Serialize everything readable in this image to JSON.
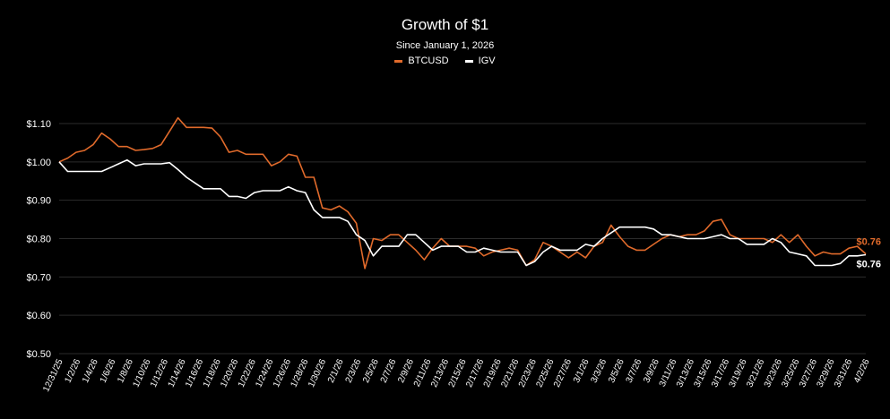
{
  "chart_data": {
    "type": "line",
    "title": "Growth of $1",
    "subtitle": "Since January 1, 2026",
    "ylim": [
      0.5,
      1.1
    ],
    "y_ticks": [
      0.5,
      0.6,
      0.7,
      0.8,
      0.9,
      1.0,
      1.1
    ],
    "y_tick_labels": [
      "$0.50",
      "$0.60",
      "$0.70",
      "$0.80",
      "$0.90",
      "$1.00",
      "$1.10"
    ],
    "x_tick_labels": [
      "12/31/25",
      "1/2/26",
      "1/4/26",
      "1/6/26",
      "1/8/26",
      "1/10/26",
      "1/12/26",
      "1/14/26",
      "1/16/26",
      "1/18/26",
      "1/20/26",
      "1/22/26",
      "1/24/26",
      "1/26/26",
      "1/28/26",
      "1/30/26",
      "2/1/26",
      "2/3/26",
      "2/5/26",
      "2/7/26",
      "2/9/26",
      "2/11/26",
      "2/13/26",
      "2/15/26",
      "2/17/26",
      "2/19/26",
      "2/21/26",
      "2/23/26",
      "2/25/26",
      "2/27/26",
      "3/1/26",
      "3/3/26",
      "3/5/26",
      "3/7/26",
      "3/9/26",
      "3/11/26",
      "3/13/26",
      "3/15/26",
      "3/17/26",
      "3/19/26",
      "3/21/26",
      "3/23/26",
      "3/25/26",
      "3/27/26",
      "3/29/26",
      "3/31/26",
      "4/2/26"
    ],
    "series": [
      {
        "name": "BTCUSD",
        "color": "#e06a2b",
        "end_label": "$0.76",
        "values": [
          1.0,
          1.01,
          1.025,
          1.03,
          1.045,
          1.075,
          1.06,
          1.04,
          1.04,
          1.03,
          1.032,
          1.035,
          1.045,
          1.08,
          1.115,
          1.09,
          1.09,
          1.09,
          1.088,
          1.065,
          1.025,
          1.03,
          1.02,
          1.02,
          1.02,
          0.99,
          1.0,
          1.02,
          1.015,
          0.96,
          0.96,
          0.88,
          0.875,
          0.885,
          0.87,
          0.84,
          0.722,
          0.8,
          0.795,
          0.81,
          0.81,
          0.79,
          0.77,
          0.745,
          0.775,
          0.8,
          0.78,
          0.78,
          0.78,
          0.775,
          0.755,
          0.765,
          0.77,
          0.775,
          0.77,
          0.73,
          0.745,
          0.79,
          0.78,
          0.765,
          0.75,
          0.765,
          0.75,
          0.78,
          0.79,
          0.835,
          0.805,
          0.78,
          0.77,
          0.77,
          0.785,
          0.8,
          0.81,
          0.805,
          0.81,
          0.81,
          0.82,
          0.845,
          0.85,
          0.81,
          0.8,
          0.8,
          0.8,
          0.8,
          0.79,
          0.81,
          0.79,
          0.81,
          0.78,
          0.755,
          0.765,
          0.76,
          0.76,
          0.775,
          0.78,
          0.76
        ]
      },
      {
        "name": "IGV",
        "color": "#ffffff",
        "end_label": "$0.76",
        "values": [
          1.0,
          0.975,
          0.975,
          0.975,
          0.975,
          0.975,
          0.985,
          0.995,
          1.005,
          0.99,
          0.995,
          0.995,
          0.995,
          0.998,
          0.98,
          0.96,
          0.945,
          0.93,
          0.93,
          0.93,
          0.91,
          0.91,
          0.905,
          0.92,
          0.925,
          0.925,
          0.925,
          0.935,
          0.925,
          0.92,
          0.875,
          0.855,
          0.855,
          0.855,
          0.845,
          0.81,
          0.795,
          0.755,
          0.78,
          0.78,
          0.78,
          0.81,
          0.81,
          0.79,
          0.77,
          0.78,
          0.78,
          0.78,
          0.765,
          0.765,
          0.775,
          0.77,
          0.765,
          0.765,
          0.765,
          0.73,
          0.74,
          0.765,
          0.78,
          0.77,
          0.77,
          0.77,
          0.785,
          0.78,
          0.8,
          0.815,
          0.83,
          0.83,
          0.83,
          0.83,
          0.825,
          0.81,
          0.81,
          0.805,
          0.8,
          0.8,
          0.8,
          0.805,
          0.81,
          0.8,
          0.8,
          0.785,
          0.785,
          0.785,
          0.8,
          0.79,
          0.765,
          0.76,
          0.755,
          0.73,
          0.73,
          0.73,
          0.735,
          0.755,
          0.755,
          0.758
        ]
      }
    ]
  }
}
